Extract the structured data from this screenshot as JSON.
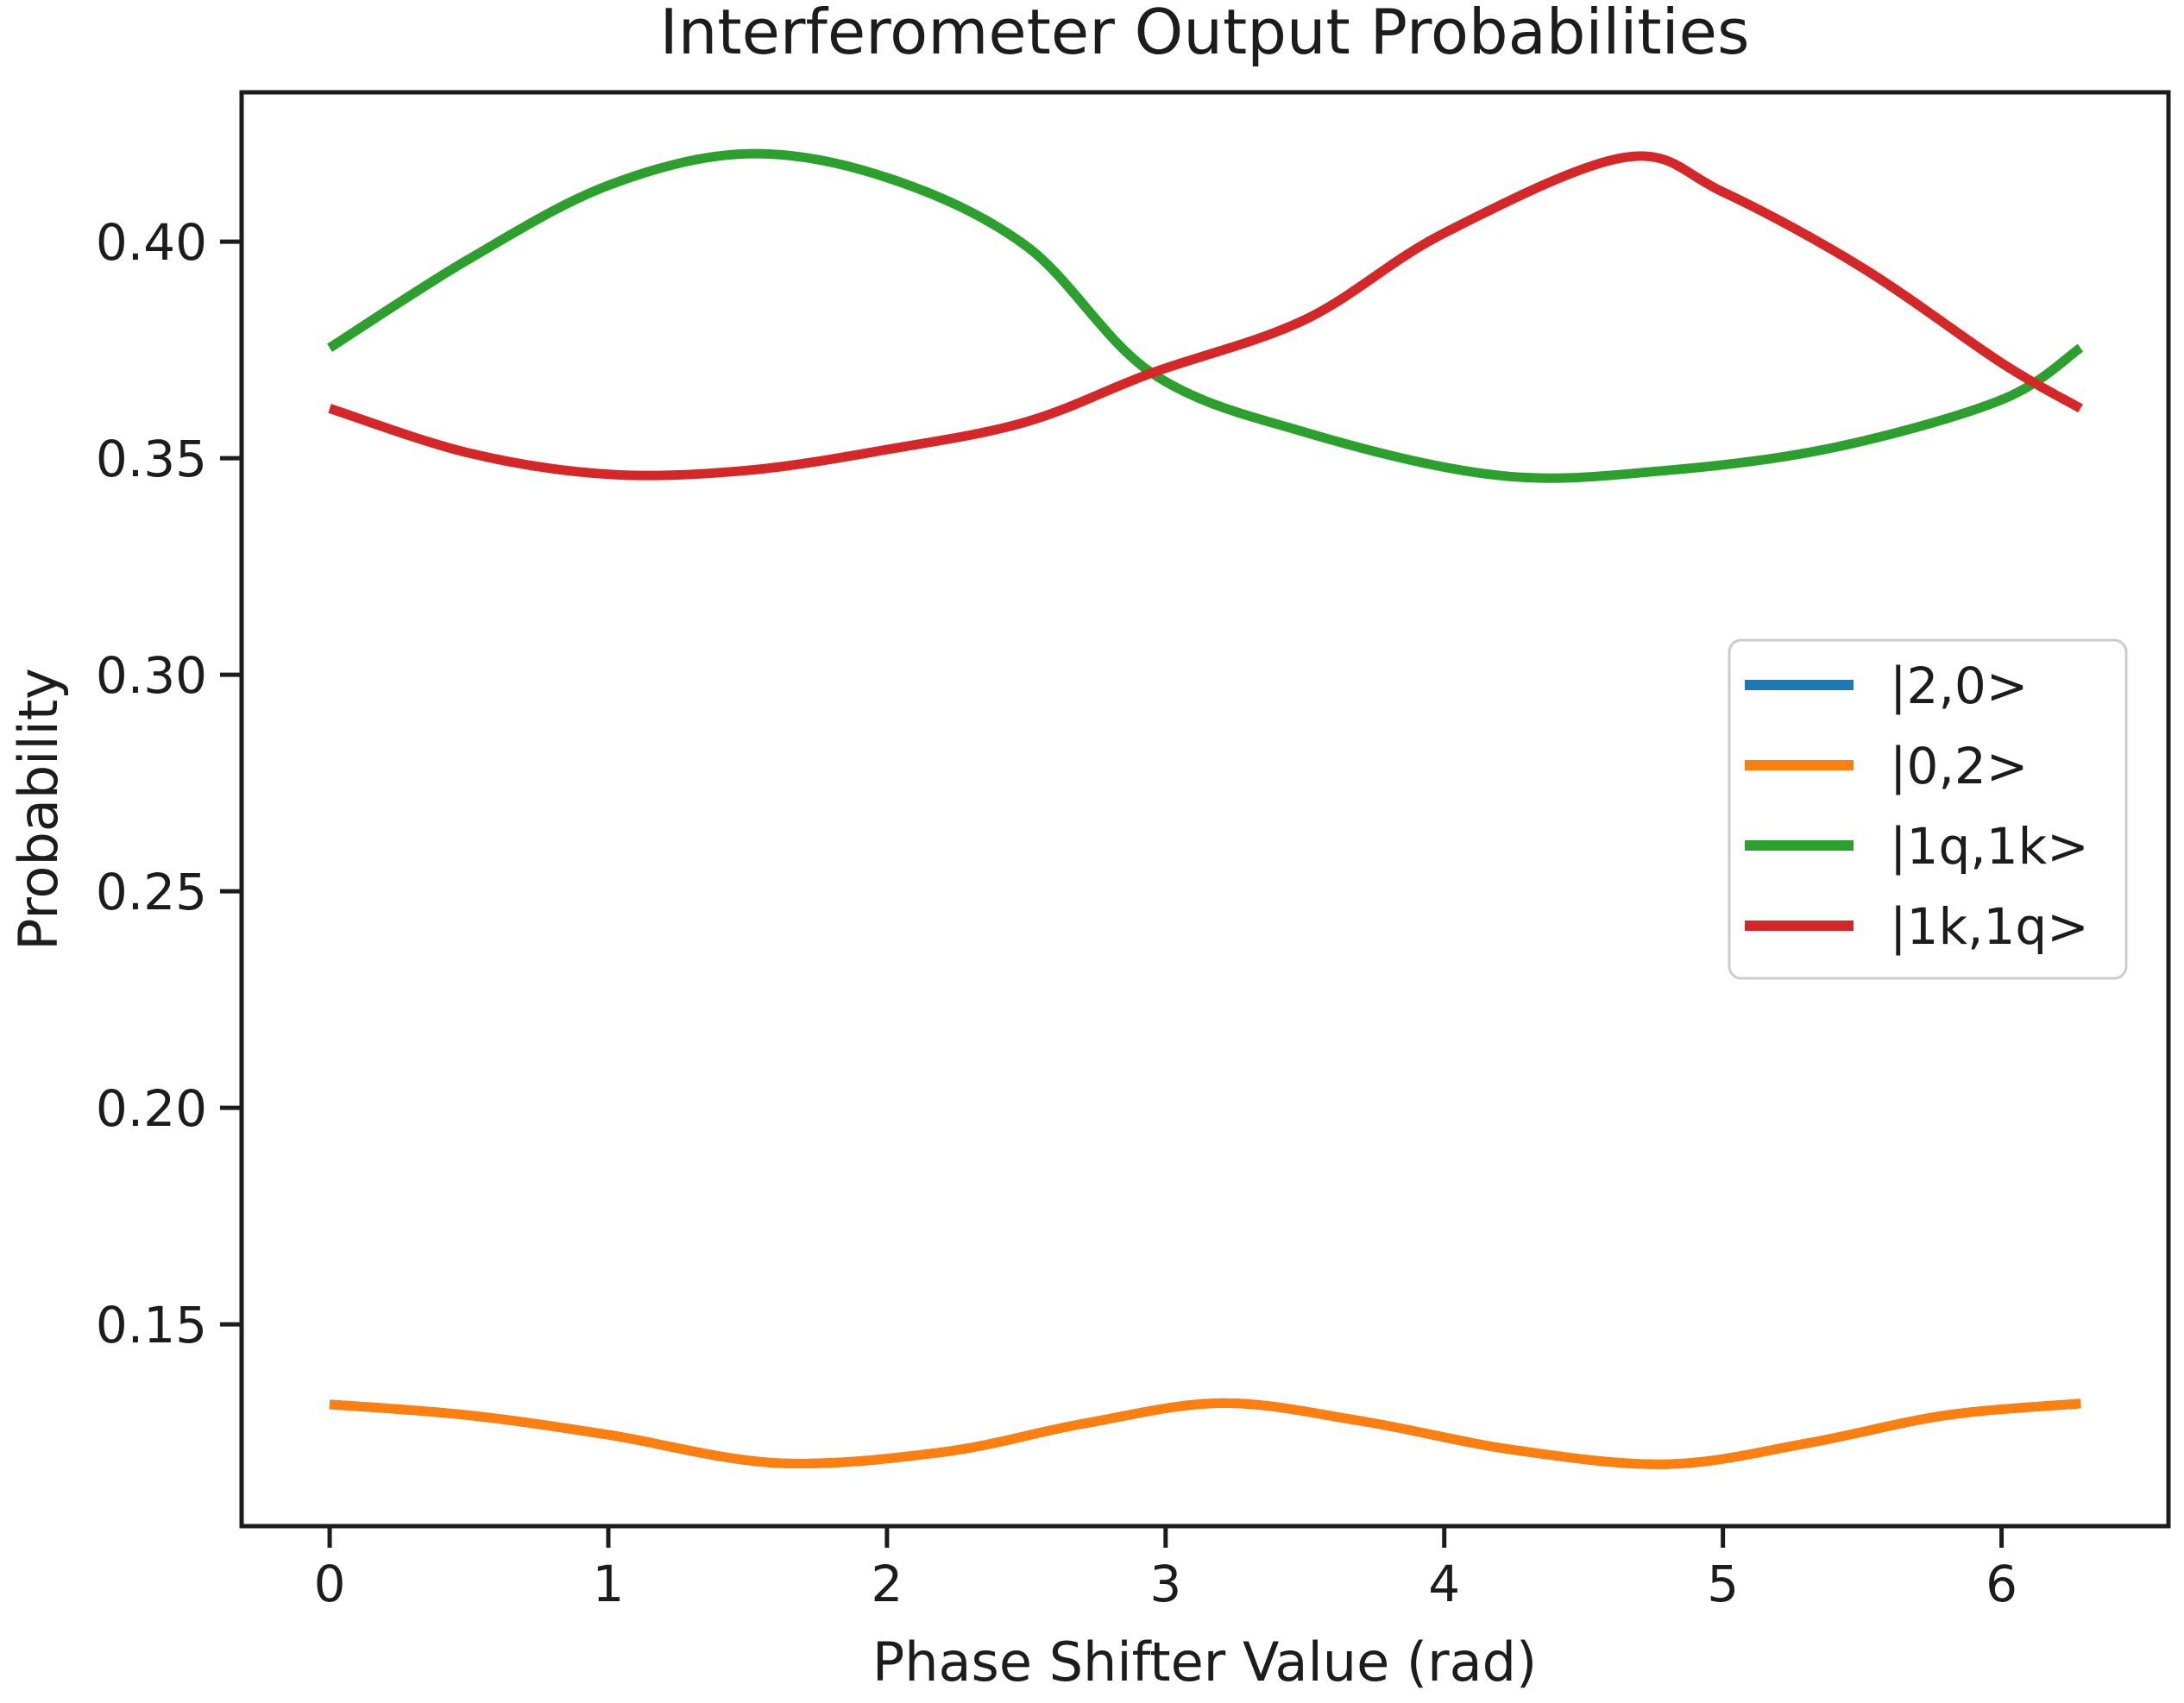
{
  "title": "Interferometer Output Probabilities",
  "axes": {
    "xlabel": "Phase Shifter Value (rad)",
    "ylabel": "Probability",
    "x_tick_labels": [
      "0",
      "1",
      "2",
      "3",
      "4",
      "5",
      "6"
    ],
    "x_tick_values": [
      0,
      1,
      2,
      3,
      4,
      5,
      6
    ],
    "y_tick_labels": [
      "0.15",
      "0.20",
      "0.25",
      "0.30",
      "0.35",
      "0.40"
    ],
    "y_tick_values": [
      0.15,
      0.2,
      0.25,
      0.3,
      0.35,
      0.4
    ]
  },
  "legend": {
    "entries": [
      {
        "label": "|2,0>",
        "color": "#1f77b4"
      },
      {
        "label": "|0,2>",
        "color": "#ff7f0e"
      },
      {
        "label": "|1q,1k>",
        "color": "#2ca02c"
      },
      {
        "label": "|1k,1q>",
        "color": "#d62728"
      }
    ],
    "border_color": "#cccccc",
    "background_color": "#ffffff"
  },
  "colors": {
    "blue": "#1f77b4",
    "orange": "#ff7f0e",
    "green": "#2ca02c",
    "red": "#d62728",
    "spine": "#1c1c1c",
    "text": "#1c1c1c"
  },
  "chart_data": {
    "type": "line",
    "title": "Interferometer Output Probabilities",
    "xlabel": "Phase Shifter Value (rad)",
    "ylabel": "Probability",
    "xlim": [
      -0.316,
      6.599
    ],
    "ylim": [
      0.1034,
      0.4345
    ],
    "x_range_of_data": [
      0,
      6.2832
    ],
    "grid": false,
    "legend_position": "inside right, upper-middle",
    "series": [
      {
        "name": "|2,0>",
        "color": "#1f77b4",
        "hidden_behind": "|0,2>",
        "x": [
          0,
          0.5,
          1.0,
          1.6,
          2.2,
          2.7,
          3.2,
          3.7,
          4.25,
          4.8,
          5.3,
          5.8,
          6.2832
        ],
        "y": [
          0.1315,
          0.129,
          0.1245,
          0.118,
          0.1205,
          0.127,
          0.1318,
          0.1277,
          0.121,
          0.1177,
          0.1225,
          0.129,
          0.1317
        ]
      },
      {
        "name": "|0,2>",
        "color": "#ff7f0e",
        "x": [
          0,
          0.5,
          1.0,
          1.6,
          2.2,
          2.7,
          3.2,
          3.7,
          4.25,
          4.8,
          5.3,
          5.8,
          6.2832
        ],
        "y": [
          0.1315,
          0.129,
          0.1245,
          0.118,
          0.1205,
          0.127,
          0.1318,
          0.1277,
          0.121,
          0.1177,
          0.1225,
          0.129,
          0.1317
        ]
      },
      {
        "name": "|1q,1k>",
        "color": "#2ca02c",
        "x": [
          0,
          0.5,
          1.0,
          1.5,
          2.0,
          2.5,
          2.95,
          3.5,
          4.2,
          4.8,
          5.4,
          6.0,
          6.2832
        ],
        "y": [
          0.3755,
          0.396,
          0.413,
          0.4203,
          0.4148,
          0.399,
          0.3697,
          0.356,
          0.346,
          0.3472,
          0.3525,
          0.3635,
          0.3755
        ]
      },
      {
        "name": "|1k,1q>",
        "color": "#d62728",
        "x": [
          0,
          0.5,
          1.0,
          1.5,
          2.0,
          2.5,
          2.95,
          3.5,
          4.0,
          4.65,
          5.0,
          5.5,
          6.0,
          6.2832
        ],
        "y": [
          0.3615,
          0.3512,
          0.3463,
          0.3472,
          0.352,
          0.3584,
          0.3697,
          0.382,
          0.402,
          0.4195,
          0.4115,
          0.394,
          0.372,
          0.3615
        ]
      }
    ]
  }
}
